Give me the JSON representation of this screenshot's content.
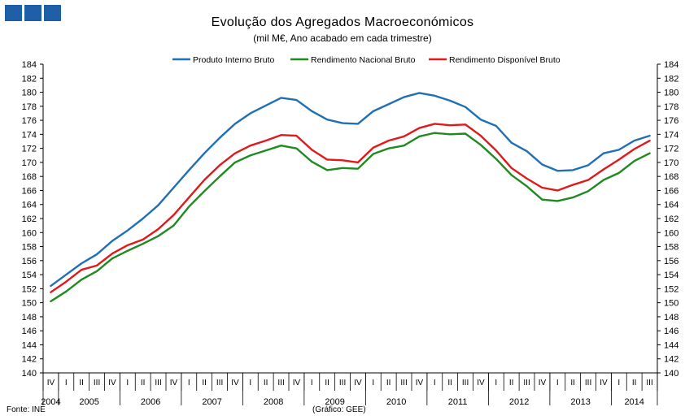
{
  "chart_data": {
    "type": "line",
    "title": "Evolução dos Agregados  Macroeconómicos",
    "subtitle": "(mil M€, Ano acabado em cada trimestre)",
    "source": "Fonte: INE",
    "credit": "(Gráfico: GEE)",
    "ylim": [
      140,
      184
    ],
    "ystep": 2,
    "grid": false,
    "legend_position": "top",
    "quarters": [
      "IV",
      "I",
      "II",
      "III",
      "IV",
      "I",
      "II",
      "III",
      "IV",
      "I",
      "II",
      "III",
      "IV",
      "I",
      "II",
      "III",
      "IV",
      "I",
      "II",
      "III",
      "IV",
      "I",
      "II",
      "III",
      "IV",
      "I",
      "II",
      "III",
      "IV",
      "I",
      "II",
      "III",
      "IV",
      "I",
      "II",
      "III",
      "IV",
      "I",
      "II",
      "III"
    ],
    "years": [
      {
        "label": "2004",
        "start": 0,
        "count": 1
      },
      {
        "label": "2005",
        "start": 1,
        "count": 4
      },
      {
        "label": "2006",
        "start": 5,
        "count": 4
      },
      {
        "label": "2007",
        "start": 9,
        "count": 4
      },
      {
        "label": "2008",
        "start": 13,
        "count": 4
      },
      {
        "label": "2009",
        "start": 17,
        "count": 4
      },
      {
        "label": "2010",
        "start": 21,
        "count": 4
      },
      {
        "label": "2011",
        "start": 25,
        "count": 4
      },
      {
        "label": "2012",
        "start": 29,
        "count": 4
      },
      {
        "label": "2013",
        "start": 33,
        "count": 4
      },
      {
        "label": "2014",
        "start": 37,
        "count": 3
      }
    ],
    "series": [
      {
        "name": "Produto Interno Bruto",
        "color": "#1f6fb4",
        "values": [
          152.4,
          154.0,
          155.6,
          156.9,
          158.8,
          160.3,
          162.0,
          163.9,
          166.4,
          168.9,
          171.3,
          173.5,
          175.5,
          177.0,
          178.1,
          179.2,
          178.9,
          177.3,
          176.1,
          175.6,
          175.5,
          177.3,
          178.3,
          179.3,
          179.9,
          179.5,
          178.8,
          177.9,
          176.1,
          175.2,
          172.8,
          171.6,
          169.7,
          168.8,
          168.9,
          169.6,
          171.3,
          171.8,
          173.1,
          173.8
        ]
      },
      {
        "name": "Rendimento Nacional Bruto",
        "color": "#1f8a1f",
        "values": [
          150.2,
          151.6,
          153.3,
          154.5,
          156.3,
          157.4,
          158.4,
          159.5,
          161.0,
          163.7,
          165.9,
          168.0,
          170.0,
          171.0,
          171.7,
          172.4,
          172.0,
          170.1,
          168.9,
          169.2,
          169.1,
          171.2,
          172.0,
          172.4,
          173.7,
          174.2,
          174.0,
          174.1,
          172.5,
          170.5,
          168.2,
          166.6,
          164.7,
          164.5,
          165.0,
          165.9,
          167.5,
          168.5,
          170.2,
          171.3
        ]
      },
      {
        "name": "Rendimento Disponível Bruto",
        "color": "#e0191b",
        "values": [
          151.5,
          153.0,
          154.7,
          155.3,
          157.0,
          158.2,
          159.0,
          160.5,
          162.5,
          165.0,
          167.5,
          169.6,
          171.3,
          172.4,
          173.1,
          173.9,
          173.8,
          171.8,
          170.4,
          170.3,
          170.0,
          172.1,
          173.1,
          173.7,
          174.9,
          175.5,
          175.3,
          175.4,
          173.8,
          171.7,
          169.2,
          167.7,
          166.4,
          166.0,
          166.8,
          167.5,
          169.0,
          170.4,
          171.9,
          173.1
        ]
      }
    ]
  }
}
